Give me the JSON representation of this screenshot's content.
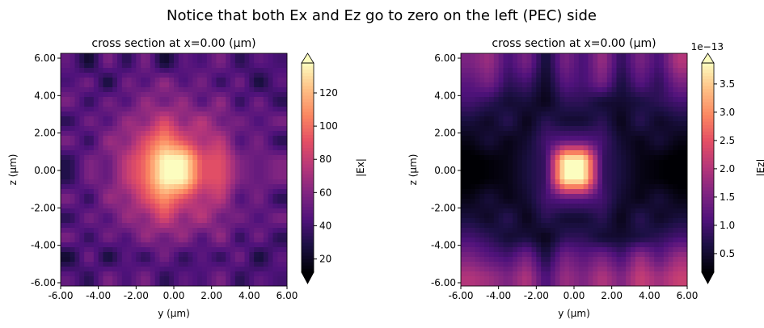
{
  "suptitle": "Notice that both Ex and Ez go to zero on the left (PEC) side",
  "chart_data": [
    {
      "type": "heatmap",
      "title": "cross section at x=0.00 (µm)",
      "xlabel": "y (µm)",
      "ylabel": "z (µm)",
      "xlim": [
        -6,
        6
      ],
      "ylim": [
        -6,
        6
      ],
      "xticks": [
        "-6.00",
        "-4.00",
        "-2.00",
        "0.00",
        "2.00",
        "4.00",
        "6.00"
      ],
      "yticks": [
        "6.00",
        "4.00",
        "2.00",
        "0.00",
        "-2.00",
        "-4.00",
        "-6.00"
      ],
      "colormap": "magma",
      "colorbar": {
        "label": "|Ex|",
        "range": [
          12,
          138
        ],
        "ticks": [
          "20",
          "40",
          "60",
          "80",
          "100",
          "120"
        ],
        "extend": "both",
        "offset_text": ""
      },
      "grid_note_rows": "rows from z=5.5 (top) to z=-5.5, columns from y=-5.5 to y=5.5",
      "values": [
        [
          50,
          20,
          60,
          30,
          60,
          20,
          50,
          40,
          60,
          30,
          50,
          40
        ],
        [
          40,
          60,
          20,
          60,
          40,
          70,
          40,
          60,
          30,
          60,
          20,
          50
        ],
        [
          60,
          30,
          60,
          40,
          70,
          50,
          70,
          40,
          70,
          30,
          60,
          30
        ],
        [
          30,
          60,
          40,
          70,
          60,
          90,
          60,
          80,
          50,
          60,
          40,
          60
        ],
        [
          60,
          30,
          70,
          60,
          90,
          110,
          90,
          70,
          80,
          40,
          60,
          30
        ],
        [
          30,
          60,
          50,
          80,
          100,
          140,
          140,
          90,
          90,
          60,
          50,
          60
        ],
        [
          30,
          60,
          50,
          80,
          100,
          140,
          140,
          90,
          90,
          60,
          50,
          60
        ],
        [
          60,
          30,
          70,
          60,
          90,
          110,
          90,
          70,
          80,
          40,
          60,
          30
        ],
        [
          30,
          60,
          40,
          70,
          60,
          90,
          60,
          80,
          50,
          60,
          40,
          60
        ],
        [
          60,
          30,
          60,
          40,
          70,
          50,
          70,
          40,
          70,
          30,
          60,
          30
        ],
        [
          20,
          60,
          20,
          50,
          30,
          60,
          30,
          50,
          30,
          60,
          20,
          50
        ],
        [
          50,
          30,
          60,
          40,
          60,
          30,
          50,
          40,
          60,
          30,
          50,
          40
        ]
      ]
    },
    {
      "type": "heatmap",
      "title": "cross section at x=0.00 (µm)",
      "xlabel": "y (µm)",
      "ylabel": "z (µm)",
      "xlim": [
        -6,
        6
      ],
      "ylim": [
        -6,
        6
      ],
      "xticks": [
        "-6.00",
        "-4.00",
        "-2.00",
        "0.00",
        "2.00",
        "4.00",
        "6.00"
      ],
      "yticks": [
        "6.00",
        "4.00",
        "2.00",
        "0.00",
        "-2.00",
        "-4.00",
        "-6.00"
      ],
      "colormap": "magma",
      "colorbar": {
        "label": "|Ez|",
        "range": [
          0.17,
          3.87
        ],
        "ticks": [
          "0.5",
          "1.0",
          "1.5",
          "2.0",
          "2.5",
          "3.0",
          "3.5"
        ],
        "extend": "both",
        "offset_text": "1e−13"
      },
      "values": [
        [
          1.5,
          1.8,
          1.0,
          1.5,
          0.5,
          1.5,
          1.0,
          1.8,
          0.8,
          1.5,
          1.0,
          2.0
        ],
        [
          1.2,
          1.5,
          0.8,
          1.0,
          0.4,
          1.2,
          1.0,
          1.5,
          0.6,
          1.2,
          0.8,
          1.5
        ],
        [
          1.0,
          0.8,
          0.5,
          0.6,
          0.3,
          0.8,
          0.8,
          0.5,
          0.5,
          0.6,
          0.8,
          1.0
        ],
        [
          0.6,
          0.4,
          0.8,
          0.3,
          0.8,
          0.5,
          0.5,
          0.8,
          0.3,
          0.8,
          0.4,
          0.6
        ],
        [
          0.3,
          0.6,
          0.3,
          0.5,
          1.0,
          1.2,
          1.2,
          1.0,
          0.5,
          0.3,
          0.6,
          0.3
        ],
        [
          0.1,
          0.2,
          0.3,
          0.6,
          0.9,
          3.9,
          3.9,
          0.9,
          0.6,
          0.3,
          0.2,
          0.1
        ],
        [
          0.1,
          0.2,
          0.3,
          0.6,
          0.9,
          3.9,
          3.9,
          0.9,
          0.6,
          0.3,
          0.2,
          0.1
        ],
        [
          0.3,
          0.6,
          0.3,
          0.5,
          1.0,
          1.2,
          1.2,
          1.0,
          0.5,
          0.3,
          0.6,
          0.3
        ],
        [
          0.6,
          0.4,
          0.8,
          0.3,
          0.8,
          0.5,
          0.5,
          0.8,
          0.3,
          0.8,
          0.4,
          0.6
        ],
        [
          1.0,
          0.8,
          0.5,
          0.6,
          0.3,
          0.8,
          0.8,
          0.5,
          0.5,
          0.6,
          0.8,
          1.0
        ],
        [
          1.5,
          1.2,
          1.0,
          1.5,
          0.6,
          1.5,
          1.2,
          1.5,
          1.0,
          1.8,
          1.2,
          1.8
        ],
        [
          2.0,
          1.8,
          1.5,
          2.0,
          1.0,
          1.8,
          1.5,
          2.0,
          1.5,
          2.2,
          1.8,
          2.2
        ]
      ]
    }
  ]
}
